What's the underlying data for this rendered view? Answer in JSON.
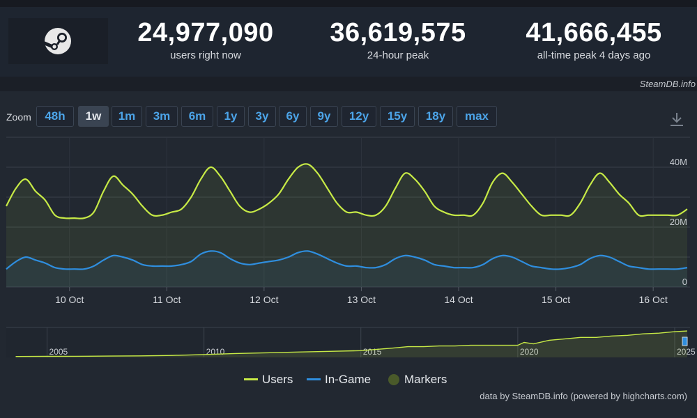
{
  "stats": [
    {
      "value": "24,977,090",
      "label": "users right now"
    },
    {
      "value": "36,619,575",
      "label": "24-hour peak"
    },
    {
      "value": "41,666,455",
      "label": "all-time peak 4 days ago"
    }
  ],
  "credit_top": "SteamDB.info",
  "zoom": {
    "label": "Zoom",
    "buttons": [
      "48h",
      "1w",
      "1m",
      "3m",
      "6m",
      "1y",
      "3y",
      "6y",
      "9y",
      "12y",
      "15y",
      "18y",
      "max"
    ],
    "active": "1w"
  },
  "footer_credit": "data by SteamDB.info (powered by highcharts.com)",
  "colors": {
    "users": "#c7ea46",
    "ingame": "#2f8ede",
    "markers": "#4a5a2a"
  },
  "chart_data": {
    "type": "line",
    "xlabel": "",
    "ylabel": "",
    "x_ticks": [
      "10 Oct",
      "11 Oct",
      "12 Oct",
      "13 Oct",
      "14 Oct",
      "15 Oct",
      "16 Oct"
    ],
    "y_ticks": [
      "0",
      "20M",
      "40M"
    ],
    "ylim": [
      0,
      50
    ],
    "y_unit": "M",
    "x_range_days": [
      9.35,
      16.35
    ],
    "series": [
      {
        "name": "Users",
        "x": [
          9.35,
          9.45,
          9.55,
          9.65,
          9.75,
          9.85,
          9.95,
          10.05,
          10.15,
          10.25,
          10.35,
          10.45,
          10.55,
          10.65,
          10.75,
          10.85,
          10.95,
          11.05,
          11.15,
          11.25,
          11.35,
          11.45,
          11.55,
          11.65,
          11.75,
          11.85,
          11.95,
          12.05,
          12.15,
          12.25,
          12.35,
          12.45,
          12.55,
          12.65,
          12.75,
          12.85,
          12.95,
          13.05,
          13.15,
          13.25,
          13.35,
          13.45,
          13.55,
          13.65,
          13.75,
          13.85,
          13.95,
          14.05,
          14.15,
          14.25,
          14.35,
          14.45,
          14.55,
          14.65,
          14.75,
          14.85,
          14.95,
          15.05,
          15.15,
          15.25,
          15.35,
          15.45,
          15.55,
          15.65,
          15.75,
          15.85,
          15.95,
          16.05,
          16.15,
          16.25,
          16.35
        ],
        "y": [
          27,
          33,
          36,
          32,
          29,
          24,
          23,
          23,
          23,
          25,
          32,
          37,
          34,
          31,
          27,
          24,
          24,
          25,
          26,
          30,
          36,
          40,
          37,
          32,
          27,
          25,
          26,
          28,
          31,
          36,
          40,
          41,
          38,
          33,
          28,
          25,
          25,
          24,
          24,
          27,
          33,
          38,
          36,
          32,
          27,
          25,
          24,
          24,
          24,
          28,
          35,
          38,
          35,
          31,
          27,
          24,
          24,
          24,
          24,
          28,
          34,
          38,
          35,
          31,
          28,
          24,
          24,
          24,
          24,
          24,
          26
        ]
      },
      {
        "name": "In-Game",
        "x": [
          9.35,
          9.45,
          9.55,
          9.65,
          9.75,
          9.85,
          9.95,
          10.05,
          10.15,
          10.25,
          10.35,
          10.45,
          10.55,
          10.65,
          10.75,
          10.85,
          10.95,
          11.05,
          11.15,
          11.25,
          11.35,
          11.45,
          11.55,
          11.65,
          11.75,
          11.85,
          11.95,
          12.05,
          12.15,
          12.25,
          12.35,
          12.45,
          12.55,
          12.65,
          12.75,
          12.85,
          12.95,
          13.05,
          13.15,
          13.25,
          13.35,
          13.45,
          13.55,
          13.65,
          13.75,
          13.85,
          13.95,
          14.05,
          14.15,
          14.25,
          14.35,
          14.45,
          14.55,
          14.65,
          14.75,
          14.85,
          14.95,
          15.05,
          15.15,
          15.25,
          15.35,
          15.45,
          15.55,
          15.65,
          15.75,
          15.85,
          15.95,
          16.05,
          16.15,
          16.25,
          16.35
        ],
        "y": [
          6,
          8.5,
          10,
          9,
          8,
          6.5,
          6,
          6,
          6,
          7,
          9,
          10.5,
          10,
          9,
          7.5,
          7,
          7,
          7,
          7.5,
          8.5,
          11,
          12,
          11.5,
          9.5,
          8,
          7.5,
          8,
          8.5,
          9,
          10,
          11.5,
          12,
          11,
          9.5,
          8,
          7,
          7,
          6.5,
          6.5,
          7.5,
          9.5,
          10.5,
          10,
          9,
          7.5,
          7,
          6.5,
          6.5,
          6.5,
          7.5,
          9.5,
          10.5,
          10,
          8.5,
          7,
          6.5,
          6,
          6,
          6.5,
          7.5,
          9.5,
          10.5,
          10,
          8.5,
          7,
          6.5,
          6,
          6,
          6,
          6,
          6.5
        ]
      }
    ],
    "navigator": {
      "x_ticks": [
        "2005",
        "2010",
        "2015",
        "2020",
        "2025"
      ],
      "series": [
        {
          "name": "Users",
          "x": [
            2004.0,
            2005.0,
            2005.9,
            2007.0,
            2008.0,
            2009.0,
            2010.0,
            2011.0,
            2012.0,
            2013.0,
            2014.0,
            2015.0,
            2016.0,
            2016.5,
            2017.0,
            2017.5,
            2018.0,
            2018.5,
            2019.0,
            2019.5,
            2020.0,
            2020.2,
            2020.5,
            2021.0,
            2021.5,
            2022.0,
            2022.5,
            2023.0,
            2023.5,
            2024.0,
            2024.5,
            2025.0,
            2025.4
          ],
          "y": [
            0.3,
            0.5,
            0.6,
            0.9,
            1.2,
            1.8,
            3.0,
            4.5,
            5.5,
            6.5,
            7.5,
            8.5,
            12,
            14,
            14,
            15,
            15,
            16,
            16,
            16,
            16,
            20,
            18,
            23,
            25,
            27,
            27,
            29,
            30,
            32,
            33,
            35,
            36
          ]
        }
      ]
    },
    "legend": {
      "items": [
        "Users",
        "In-Game",
        "Markers"
      ],
      "placement": "bottom-center"
    }
  }
}
